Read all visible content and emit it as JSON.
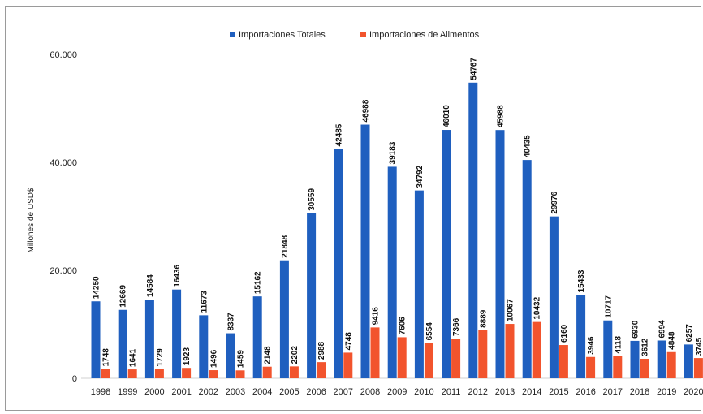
{
  "chart_data": {
    "type": "bar",
    "ylabel": "Millones de USD$",
    "ylim": [
      0,
      60000
    ],
    "yticks": [
      {
        "value": 0,
        "label": "0"
      },
      {
        "value": 20000,
        "label": "20.000"
      },
      {
        "value": 40000,
        "label": "40.000"
      },
      {
        "value": 60000,
        "label": "60.000"
      }
    ],
    "categories": [
      "1998",
      "1999",
      "2000",
      "2001",
      "2002",
      "2003",
      "2004",
      "2005",
      "2006",
      "2007",
      "2008",
      "2009",
      "2010",
      "2011",
      "2012",
      "2013",
      "2014",
      "2015",
      "2016",
      "2017",
      "2018",
      "2019",
      "2020"
    ],
    "series": [
      {
        "name": "Importaciones Totales",
        "color": "#1f5fbf",
        "values": [
          14250,
          12669,
          14584,
          16436,
          11673,
          8337,
          15162,
          21848,
          30559,
          42485,
          46988,
          39183,
          34792,
          46010,
          54767,
          45988,
          40435,
          29976,
          15433,
          10717,
          6930,
          6994,
          6257
        ]
      },
      {
        "name": "Importaciones de Alimentos",
        "color": "#f2542d",
        "values": [
          1748,
          1641,
          1729,
          1923,
          1496,
          1459,
          2148,
          2202,
          2988,
          4748,
          9416,
          7606,
          6554,
          7366,
          8889,
          10067,
          10432,
          6160,
          3946,
          4118,
          3612,
          4848,
          3745
        ]
      }
    ],
    "legend_position": "top-center",
    "grid": false
  }
}
